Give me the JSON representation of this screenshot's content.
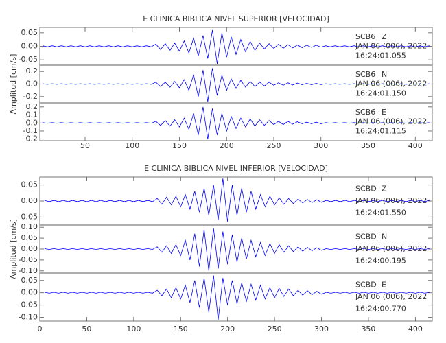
{
  "chart_data": [
    {
      "type": "line",
      "title": "E CLINICA BIBLICA NIVEL SUPERIOR [VELOCIDAD]",
      "ylabel": "Amplitud [cm/s]",
      "x": [
        5,
        10,
        15,
        20,
        25,
        30,
        35,
        40,
        45,
        50,
        55,
        60,
        65,
        70,
        75,
        80,
        85,
        90,
        95,
        100,
        105,
        110,
        115,
        120,
        125,
        130,
        135,
        140,
        145,
        150,
        155,
        160,
        165,
        170,
        175,
        180,
        185,
        190,
        195,
        200,
        205,
        210,
        215,
        220,
        225,
        230,
        235,
        240,
        245,
        250,
        255,
        260,
        265,
        270,
        275,
        280,
        285,
        290,
        295,
        300,
        305,
        310,
        315,
        320,
        325,
        330,
        335,
        340,
        345,
        350,
        355,
        360,
        365,
        370,
        375,
        380,
        385,
        390,
        395,
        400,
        405,
        410,
        415
      ],
      "xlim": [
        2,
        418
      ],
      "xticks": [
        50,
        100,
        150,
        200,
        250,
        300,
        350,
        400
      ],
      "series": [
        {
          "name": "SCB6",
          "component": "Z",
          "date": "JAN 06 (006), 2022",
          "time": "16:24:01.055",
          "color": "#0000ff",
          "ylim": [
            -0.07,
            0.07
          ],
          "yticks": [
            0.05,
            {
              "value": 0,
              "label": "0.00"
            },
            -0.05
          ],
          "values": [
            0.002,
            -0.002,
            0.002,
            -0.002,
            0.002,
            -0.002,
            0.002,
            -0.002,
            0.002,
            -0.002,
            0.002,
            -0.002,
            0.002,
            -0.002,
            0.002,
            -0.002,
            0.002,
            -0.002,
            0.002,
            -0.002,
            0.002,
            -0.002,
            0.002,
            -0.002,
            0.008,
            -0.012,
            0.01,
            -0.015,
            0.012,
            -0.018,
            0.02,
            -0.025,
            0.03,
            -0.035,
            0.04,
            -0.045,
            0.06,
            -0.065,
            0.05,
            -0.04,
            0.035,
            -0.03,
            0.025,
            -0.02,
            0.018,
            -0.015,
            0.012,
            -0.01,
            0.01,
            -0.008,
            0.008,
            -0.007,
            0.006,
            -0.006,
            0.005,
            -0.005,
            0.004,
            -0.004,
            0.004,
            -0.003,
            0.002,
            -0.002,
            0.002,
            -0.002,
            0.002,
            -0.002,
            0.002,
            -0.002,
            0.002,
            -0.002,
            0.002,
            -0.002,
            0.002,
            -0.002,
            0.002,
            -0.002,
            0.002,
            -0.002,
            0.002,
            -0.002,
            0.002,
            -0.002,
            0.002
          ]
        },
        {
          "name": "SCB6",
          "component": "N",
          "date": "JAN 06 (006), 2022",
          "time": "16:24:01.150",
          "color": "#0000ff",
          "ylim": [
            -0.3,
            0.3
          ],
          "yticks": [
            0.2,
            {
              "value": 0,
              "label": "0.0"
            },
            -0.2
          ],
          "values": [
            0.005,
            -0.005,
            0.005,
            -0.005,
            0.005,
            -0.005,
            0.005,
            -0.005,
            0.005,
            -0.005,
            0.005,
            -0.005,
            0.005,
            -0.005,
            0.005,
            -0.005,
            0.005,
            -0.005,
            0.005,
            -0.005,
            0.005,
            -0.005,
            0.005,
            -0.005,
            0.03,
            -0.04,
            0.03,
            -0.05,
            0.04,
            -0.06,
            0.07,
            -0.1,
            0.15,
            -0.2,
            0.22,
            -0.28,
            0.25,
            -0.18,
            0.14,
            -0.1,
            0.08,
            -0.07,
            0.06,
            -0.05,
            0.04,
            -0.04,
            0.03,
            -0.03,
            0.03,
            -0.02,
            0.02,
            -0.02,
            0.02,
            -0.015,
            0.015,
            -0.01,
            0.01,
            -0.01,
            0.01,
            -0.01,
            0.005,
            -0.005,
            0.005,
            -0.005,
            0.005,
            -0.005,
            0.005,
            -0.005,
            0.005,
            -0.005,
            0.005,
            -0.005,
            0.005,
            -0.005,
            0.005,
            -0.005,
            0.005,
            -0.005,
            0.005,
            -0.005,
            0.005,
            -0.005,
            0.005
          ]
        },
        {
          "name": "SCB6",
          "component": "E",
          "date": "JAN 06 (006), 2022",
          "time": "16:24:01.115",
          "color": "#0000ff",
          "ylim": [
            -0.22,
            0.25
          ],
          "yticks": [
            0.2,
            0.1,
            {
              "value": 0,
              "label": "0.0"
            },
            -0.1,
            -0.2
          ],
          "values": [
            0.004,
            -0.004,
            0.004,
            -0.004,
            0.004,
            -0.004,
            0.004,
            -0.004,
            0.004,
            -0.004,
            0.004,
            -0.004,
            0.004,
            -0.004,
            0.004,
            -0.004,
            0.004,
            -0.004,
            0.004,
            -0.004,
            0.004,
            -0.004,
            0.004,
            -0.004,
            0.02,
            -0.03,
            0.03,
            -0.04,
            0.04,
            -0.05,
            0.06,
            -0.08,
            0.12,
            -0.15,
            0.2,
            -0.2,
            0.18,
            -0.15,
            0.12,
            -0.1,
            0.08,
            -0.07,
            0.06,
            -0.05,
            0.05,
            -0.04,
            0.04,
            -0.03,
            0.03,
            -0.02,
            0.02,
            -0.02,
            0.02,
            -0.015,
            0.015,
            -0.01,
            0.01,
            -0.01,
            0.01,
            -0.01,
            0.004,
            -0.004,
            0.004,
            -0.004,
            0.004,
            -0.004,
            0.004,
            -0.004,
            0.004,
            -0.004,
            0.004,
            -0.004,
            0.004,
            -0.004,
            0.004,
            -0.004,
            0.004,
            -0.004,
            0.004,
            -0.004,
            0.004,
            -0.004,
            0.004
          ]
        }
      ]
    },
    {
      "type": "line",
      "title": "E CLINICA BIBLICA NIVEL INFERIOR [VELOCIDAD]",
      "ylabel": "Amplitud [cm/s]",
      "x": [
        5,
        10,
        15,
        20,
        25,
        30,
        35,
        40,
        45,
        50,
        55,
        60,
        65,
        70,
        75,
        80,
        85,
        90,
        95,
        100,
        105,
        110,
        115,
        120,
        125,
        130,
        135,
        140,
        145,
        150,
        155,
        160,
        165,
        170,
        175,
        180,
        185,
        190,
        195,
        200,
        205,
        210,
        215,
        220,
        225,
        230,
        235,
        240,
        245,
        250,
        255,
        260,
        265,
        270,
        275,
        280,
        285,
        290,
        295,
        300,
        305,
        310,
        315,
        320,
        325,
        330,
        335,
        340,
        345,
        350,
        355,
        360,
        365,
        370,
        375,
        380,
        385,
        390,
        395,
        400,
        405,
        410,
        415
      ],
      "xlim": [
        0,
        418
      ],
      "xticks": [
        0,
        50,
        100,
        150,
        200,
        250,
        300,
        350,
        400
      ],
      "series": [
        {
          "name": "SCBD",
          "component": "Z",
          "date": "JAN 06 (006), 2022",
          "time": "16:24:01.550",
          "color": "#0000ff",
          "ylim": [
            -0.075,
            0.075
          ],
          "yticks": [
            0.05,
            {
              "value": 0,
              "label": "0.00"
            },
            -0.05
          ],
          "values": [
            0.002,
            -0.002,
            0.002,
            -0.002,
            0.002,
            -0.002,
            0.002,
            -0.002,
            0.002,
            -0.002,
            0.002,
            -0.002,
            0.002,
            -0.002,
            0.002,
            -0.002,
            0.002,
            -0.002,
            0.002,
            -0.002,
            0.002,
            -0.002,
            0.002,
            -0.002,
            0.008,
            -0.01,
            0.012,
            -0.012,
            0.015,
            -0.018,
            0.02,
            -0.025,
            0.03,
            -0.035,
            0.04,
            -0.045,
            0.05,
            -0.06,
            0.07,
            -0.065,
            0.05,
            -0.045,
            0.04,
            -0.035,
            0.03,
            -0.025,
            0.02,
            -0.018,
            0.015,
            -0.012,
            0.01,
            -0.01,
            0.008,
            -0.008,
            0.006,
            -0.006,
            0.005,
            -0.005,
            0.004,
            -0.004,
            0.002,
            -0.002,
            0.002,
            -0.002,
            0.002,
            -0.002,
            0.002,
            -0.002,
            0.002,
            -0.002,
            0.002,
            -0.002,
            0.002,
            -0.002,
            0.002,
            -0.002,
            0.002,
            -0.002,
            0.002,
            -0.002,
            0.002,
            -0.002,
            0.002
          ]
        },
        {
          "name": "SCBD",
          "component": "N",
          "date": "JAN 06 (006), 2022",
          "time": "16:24:00.195",
          "color": "#0000ff",
          "ylim": [
            -0.11,
            0.11
          ],
          "yticks": [
            {
              "value": 0.1,
              "label": "0.10"
            },
            0.05,
            {
              "value": 0,
              "label": "0.00"
            },
            -0.05,
            {
              "value": -0.1,
              "label": "-0.10"
            }
          ],
          "values": [
            0.002,
            -0.002,
            0.002,
            -0.002,
            0.002,
            -0.002,
            0.002,
            -0.002,
            0.002,
            -0.002,
            0.002,
            -0.002,
            0.002,
            -0.002,
            0.002,
            -0.002,
            0.002,
            -0.002,
            0.002,
            -0.002,
            0.002,
            -0.002,
            0.002,
            -0.002,
            0.01,
            -0.015,
            0.015,
            -0.02,
            0.02,
            -0.03,
            0.04,
            -0.05,
            0.07,
            -0.08,
            0.09,
            -0.1,
            0.095,
            -0.09,
            0.08,
            -0.07,
            0.065,
            -0.06,
            0.05,
            -0.045,
            0.04,
            -0.035,
            0.03,
            -0.03,
            0.025,
            -0.02,
            0.02,
            -0.015,
            0.015,
            -0.012,
            0.01,
            -0.01,
            0.008,
            -0.008,
            0.006,
            -0.006,
            0.002,
            -0.002,
            0.002,
            -0.002,
            0.002,
            -0.002,
            0.002,
            -0.002,
            0.002,
            -0.002,
            0.002,
            -0.002,
            0.002,
            -0.002,
            0.002,
            -0.002,
            0.002,
            -0.002,
            0.002,
            -0.002,
            0.002,
            -0.002,
            0.002
          ]
        },
        {
          "name": "SCBD",
          "component": "E",
          "date": "JAN 06 (006), 2022",
          "time": "16:24:00.770",
          "color": "#0000ff",
          "ylim": [
            -0.115,
            0.08
          ],
          "yticks": [
            0.05,
            {
              "value": 0,
              "label": "0.00"
            },
            -0.05,
            {
              "value": -0.1,
              "label": "-0.10"
            }
          ],
          "values": [
            0.002,
            -0.002,
            0.002,
            -0.002,
            0.002,
            -0.002,
            0.002,
            -0.002,
            0.002,
            -0.002,
            0.002,
            -0.002,
            0.002,
            -0.002,
            0.002,
            -0.002,
            0.002,
            -0.002,
            0.002,
            -0.002,
            0.002,
            -0.002,
            0.002,
            -0.002,
            0.01,
            -0.012,
            0.015,
            -0.02,
            0.02,
            -0.025,
            0.03,
            -0.04,
            0.05,
            -0.06,
            0.06,
            -0.08,
            0.07,
            -0.11,
            0.06,
            -0.05,
            0.05,
            -0.045,
            0.04,
            -0.035,
            0.035,
            -0.03,
            0.03,
            -0.025,
            0.02,
            -0.02,
            0.018,
            -0.015,
            0.015,
            -0.012,
            0.01,
            -0.01,
            0.008,
            -0.008,
            0.006,
            -0.006,
            0.002,
            -0.002,
            0.002,
            -0.002,
            0.002,
            -0.002,
            0.002,
            -0.002,
            0.002,
            -0.002,
            0.002,
            -0.002,
            0.002,
            -0.002,
            0.002,
            -0.002,
            0.002,
            -0.002,
            0.002,
            -0.002,
            0.002,
            -0.002,
            0.002
          ]
        }
      ]
    }
  ]
}
